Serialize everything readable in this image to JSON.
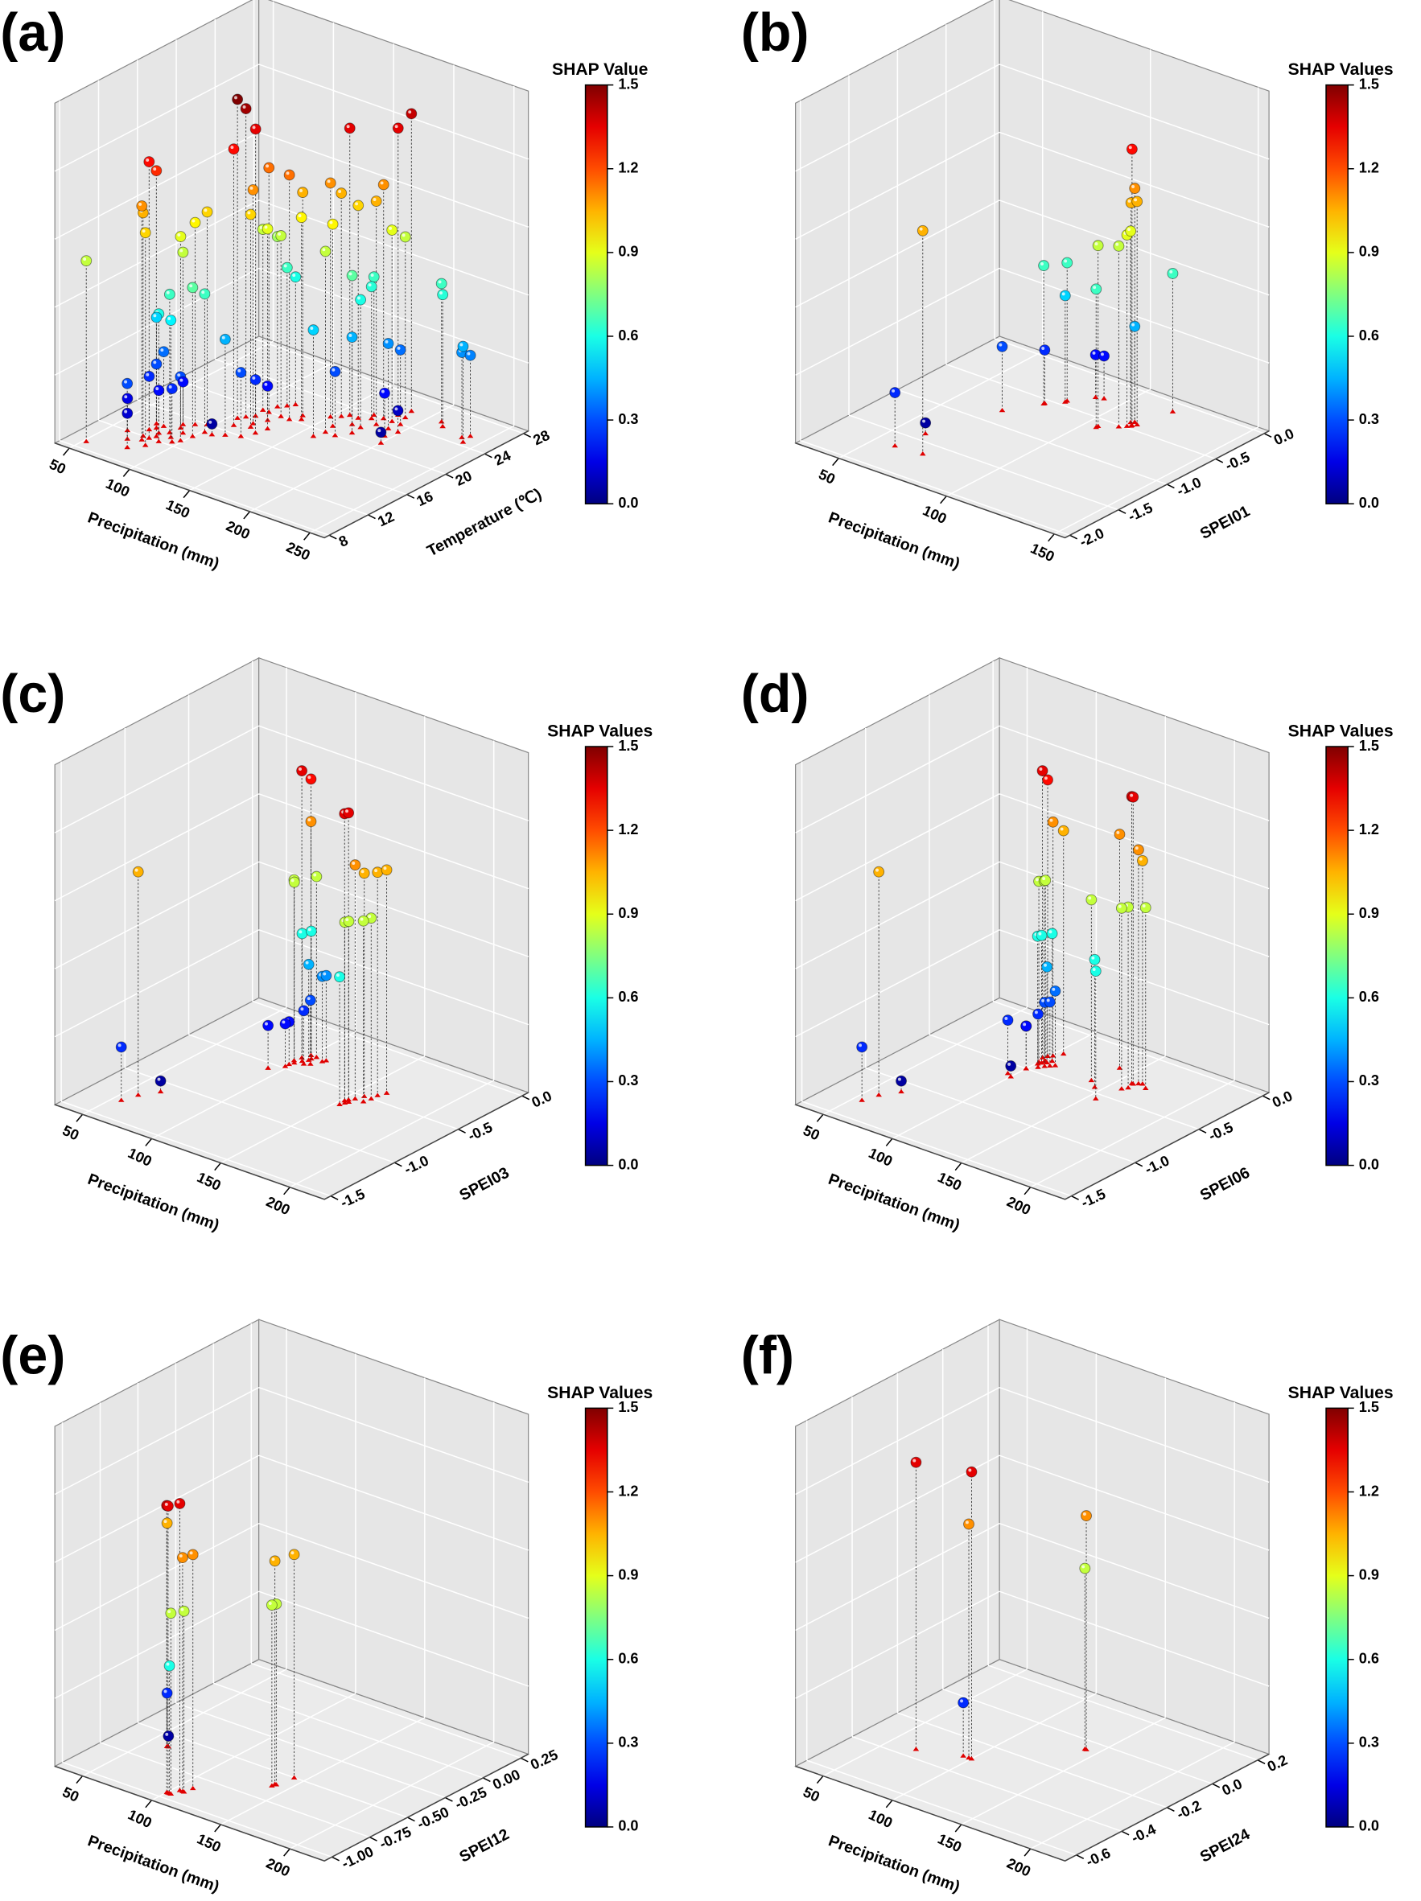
{
  "chart_data": [
    {
      "type": "scatter3d",
      "title": "(a)",
      "x_label": "Precipitation (mm)",
      "y_label": "Temperature (℃)",
      "cbar_title": "SHAP Value",
      "xlim": [
        38,
        262
      ],
      "ylim": [
        7.5,
        28.5
      ],
      "zlim": [
        0,
        1.6
      ],
      "clim": [
        0,
        1.5
      ],
      "xticks": [
        50,
        100,
        150,
        200,
        250
      ],
      "yticks": [
        8,
        12,
        16,
        20,
        24,
        28
      ],
      "cbar_ticks": [
        {
          "value": 0,
          "label": "0.0"
        },
        0.3,
        0.6,
        0.9,
        1.2,
        1.5
      ],
      "x": [
        52,
        210,
        215,
        235,
        240,
        238,
        62,
        70,
        75,
        78,
        80,
        82,
        85,
        72,
        74,
        76,
        80,
        85,
        88,
        90,
        92,
        86,
        95,
        98,
        100,
        102,
        84,
        90,
        96,
        78,
        70,
        105,
        108,
        110,
        112,
        115,
        118,
        120,
        110,
        114,
        122,
        125,
        118,
        121,
        124,
        128,
        130,
        108,
        115,
        132,
        135,
        138,
        150,
        155,
        158,
        160,
        162,
        165,
        168,
        170,
        172,
        175,
        178,
        180,
        182,
        185,
        188,
        190,
        192,
        195,
        198,
        200,
        185,
        170,
        160,
        176
      ],
      "y": [
        9,
        26,
        25.5,
        25,
        24.5,
        25.5,
        12,
        11,
        12,
        11.5,
        12,
        12.5,
        11,
        13,
        13.5,
        14,
        13,
        13.5,
        12,
        13,
        14,
        14.5,
        12.5,
        13,
        14,
        15,
        15,
        15.5,
        16,
        10,
        14,
        18,
        18.5,
        17,
        19,
        20,
        18,
        17.5,
        20,
        21,
        19,
        20,
        21.5,
        22,
        16,
        17,
        18,
        15,
        15.5,
        20,
        21,
        20.5,
        22,
        22.5,
        23,
        21,
        20,
        23,
        22,
        24,
        23.5,
        22,
        24,
        23,
        25,
        24,
        25,
        23,
        24,
        22,
        23,
        21,
        26,
        20,
        19,
        21
      ],
      "values": [
        0.85,
        0.65,
        0.62,
        0.4,
        0.45,
        0.38,
        0.15,
        0.12,
        1.05,
        1.1,
        1.3,
        1.25,
        1.0,
        0.25,
        0.3,
        0.35,
        0.2,
        0.65,
        0.6,
        0.55,
        0.85,
        0.9,
        0.25,
        0.3,
        0.7,
        0.65,
        0.2,
        0.95,
        1.0,
        0.3,
        0.5,
        1.5,
        1.45,
        1.3,
        1.35,
        1.15,
        1.1,
        1.0,
        0.85,
        0.8,
        0.9,
        0.85,
        0.65,
        0.6,
        0.3,
        0.25,
        0.2,
        0.05,
        0.45,
        1.15,
        1.05,
        0.95,
        1.1,
        1.05,
        1.35,
        0.95,
        0.85,
        1.0,
        0.7,
        0.65,
        0.62,
        0.6,
        1.1,
        1.05,
        1.35,
        0.9,
        0.85,
        0.4,
        0.35,
        0.2,
        0.1,
        0.05,
        1.4,
        0.3,
        0.5,
        0.45
      ]
    },
    {
      "type": "scatter3d",
      "title": "(b)",
      "x_label": "Precipitation (mm)",
      "y_label": "SPEI01",
      "cbar_title": "SHAP Values",
      "xlim": [
        30,
        155
      ],
      "ylim": [
        -2.05,
        0.05
      ],
      "zlim": [
        0,
        1.6
      ],
      "clim": [
        0,
        1.5
      ],
      "xticks": [
        50,
        100,
        150
      ],
      "yticks": [
        {
          "value": 0,
          "label": "0.0"
        },
        -0.5,
        {
          "value": -1,
          "label": "-1.0"
        },
        -1.5,
        {
          "value": -2,
          "label": "-2.0"
        }
      ],
      "cbar_ticks": [
        {
          "value": 0,
          "label": "0.0"
        },
        0.3,
        0.6,
        0.9,
        1.2,
        1.5
      ],
      "x": [
        59,
        71,
        61,
        70,
        78,
        78,
        83,
        83,
        105,
        89,
        92,
        105,
        111,
        113,
        112,
        114,
        115,
        113,
        114,
        113,
        118
      ],
      "y": [
        -1.67,
        -1.65,
        -1.4,
        -0.81,
        -0.56,
        -0.55,
        -0.43,
        -0.45,
        -0.62,
        -0.27,
        -0.25,
        -0.6,
        -0.52,
        -0.48,
        -0.42,
        -0.46,
        -0.42,
        -0.4,
        -0.45,
        -0.4,
        -0.12
      ],
      "values": [
        0.25,
        1.05,
        0.05,
        0.3,
        0.65,
        0.25,
        0.65,
        0.5,
        0.65,
        0.2,
        0.2,
        0.85,
        0.85,
        0.9,
        0.9,
        1.05,
        1.05,
        1.1,
        1.3,
        0.45,
        0.65
      ]
    },
    {
      "type": "scatter3d",
      "title": "(c)",
      "x_label": "Precipitation (mm)",
      "y_label": "SPEI03",
      "cbar_title": "SHAP Values",
      "xlim": [
        30,
        225
      ],
      "ylim": [
        -1.55,
        0.05
      ],
      "zlim": [
        0,
        1.6
      ],
      "clim": [
        0,
        1.5
      ],
      "xticks": [
        50,
        100,
        150,
        200
      ],
      "yticks": [
        {
          "value": 0,
          "label": "0.0"
        },
        -0.5,
        {
          "value": -1,
          "label": "-1.0"
        },
        -1.5
      ],
      "cbar_ticks": [
        {
          "value": 0,
          "label": "0.0"
        },
        0.3,
        0.6,
        0.9,
        1.2,
        1.5
      ],
      "x": [
        58,
        55,
        65,
        98,
        100,
        100,
        97,
        99,
        104,
        101,
        103,
        103,
        98,
        98,
        92,
        104,
        107,
        110,
        111,
        152,
        153,
        155,
        157,
        154,
        155,
        153,
        162,
        164,
        162,
        161
      ],
      "y": [
        -1.2,
        -1.3,
        -1.1,
        -0.35,
        -0.3,
        -0.3,
        -0.4,
        -0.42,
        -0.3,
        -0.38,
        -0.33,
        -0.35,
        -0.45,
        -0.48,
        -0.55,
        -0.4,
        -0.38,
        -0.32,
        -0.3,
        -0.6,
        -0.58,
        -0.55,
        -0.5,
        -0.62,
        -0.6,
        -0.65,
        -0.45,
        -0.4,
        -0.5,
        -0.55
      ],
      "values": [
        1.05,
        0.25,
        0.05,
        1.35,
        1.3,
        1.1,
        0.85,
        0.85,
        0.85,
        0.6,
        0.6,
        0.45,
        0.2,
        0.2,
        0.2,
        0.25,
        0.3,
        0.4,
        0.4,
        1.35,
        1.35,
        1.1,
        1.05,
        0.85,
        0.85,
        0.6,
        1.05,
        1.05,
        0.85,
        0.85
      ]
    },
    {
      "type": "scatter3d",
      "title": "(d)",
      "x_label": "Precipitation (mm)",
      "y_label": "SPEI06",
      "cbar_title": "SHAP Values",
      "xlim": [
        30,
        225
      ],
      "ylim": [
        -1.55,
        0.05
      ],
      "zlim": [
        0,
        1.6
      ],
      "clim": [
        0,
        1.5
      ],
      "xticks": [
        50,
        100,
        150,
        200
      ],
      "yticks": [
        {
          "value": 0,
          "label": "0.0"
        },
        -0.5,
        {
          "value": -1,
          "label": "-1.0"
        },
        -1.5
      ],
      "cbar_ticks": [
        {
          "value": 0,
          "label": "0.0"
        },
        0.3,
        0.6,
        0.9,
        1.2,
        1.5
      ],
      "x": [
        58,
        55,
        65,
        98,
        99,
        101,
        104,
        100,
        102,
        102,
        101,
        102,
        105,
        104,
        100,
        100,
        104,
        106,
        108,
        110,
        96,
        100,
        140,
        138,
        145,
        155,
        158,
        159,
        161,
        163,
        160,
        158,
        168
      ],
      "y": [
        -1.2,
        -1.3,
        -1.1,
        -0.35,
        -0.32,
        -0.3,
        -0.25,
        -0.4,
        -0.38,
        -0.37,
        -0.42,
        -0.4,
        -0.35,
        -0.38,
        -0.5,
        -0.5,
        -0.45,
        -0.42,
        -0.4,
        -0.38,
        -0.6,
        -0.62,
        -0.2,
        -0.4,
        -0.45,
        -0.55,
        -0.3,
        -0.3,
        -0.28,
        -0.27,
        -0.35,
        -0.38,
        -0.3
      ],
      "values": [
        1.05,
        0.25,
        0.05,
        1.35,
        1.3,
        1.1,
        1.05,
        0.85,
        0.85,
        0.85,
        0.6,
        0.6,
        0.6,
        0.45,
        0.2,
        0.2,
        0.25,
        0.3,
        0.3,
        0.35,
        0.25,
        0.05,
        1.1,
        0.85,
        0.6,
        0.6,
        1.35,
        1.35,
        1.1,
        1.05,
        0.85,
        0.85,
        0.85
      ]
    },
    {
      "type": "scatter3d",
      "title": "(e)",
      "x_label": "Precipitation (mm)",
      "y_label": "SPEI12",
      "cbar_title": "SHAP Values",
      "xlim": [
        30,
        225
      ],
      "ylim": [
        -1.05,
        0.3
      ],
      "zlim": [
        0,
        1.6
      ],
      "clim": [
        0,
        1.5
      ],
      "xticks": [
        50,
        100,
        150,
        200
      ],
      "yticks": [
        {
          "value": 0.25,
          "label": "0.25"
        },
        {
          "value": 0,
          "label": "0.00"
        },
        -0.25,
        {
          "value": -0.5,
          "label": "-0.50"
        },
        -0.75,
        {
          "value": -1,
          "label": "-1.00"
        }
      ],
      "cbar_ticks": [
        {
          "value": 0,
          "label": "0.0"
        },
        0.3,
        0.6,
        0.9,
        1.2,
        1.5
      ],
      "x": [
        62,
        62,
        63,
        104,
        100,
        101,
        106,
        108,
        103,
        107,
        102,
        140,
        143,
        141,
        140
      ],
      "y": [
        -0.6,
        -0.6,
        -0.6,
        -0.9,
        -0.95,
        -0.95,
        -0.9,
        -0.85,
        -0.95,
        -0.9,
        -0.95,
        -0.6,
        -0.5,
        -0.6,
        -0.62
      ],
      "values": [
        1.05,
        0.25,
        0.05,
        1.35,
        1.35,
        1.35,
        1.1,
        1.1,
        0.85,
        0.85,
        0.6,
        1.05,
        1.05,
        0.85,
        0.85
      ]
    },
    {
      "type": "scatter3d",
      "title": "(f)",
      "x_label": "Precipitation (mm)",
      "y_label": "SPEI24",
      "cbar_title": "SHAP Values",
      "xlim": [
        30,
        225
      ],
      "ylim": [
        -0.65,
        0.25
      ],
      "zlim": [
        0,
        1.6
      ],
      "clim": [
        0,
        1.5
      ],
      "xticks": [
        50,
        100,
        150,
        200
      ],
      "yticks": [
        0.2,
        {
          "value": 0,
          "label": "0.0"
        },
        -0.2,
        -0.4,
        -0.6
      ],
      "cbar_ticks": [
        {
          "value": 0,
          "label": "0.0"
        },
        0.3,
        0.6,
        0.9,
        1.2,
        1.5
      ],
      "x": [
        68,
        100,
        98,
        94,
        142,
        141
      ],
      "y": [
        -0.35,
        -0.3,
        -0.3,
        -0.3,
        -0.05,
        -0.05
      ],
      "values": [
        1.35,
        1.35,
        1.1,
        0.25,
        1.1,
        0.85
      ]
    }
  ]
}
